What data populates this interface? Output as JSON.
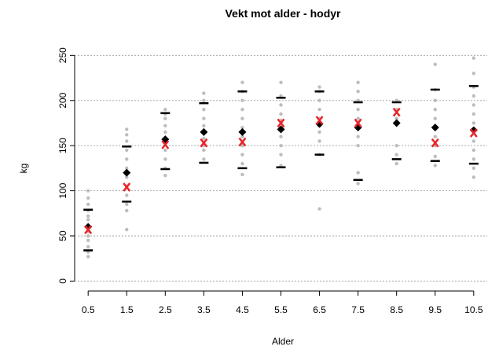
{
  "chart_data": {
    "type": "scatter",
    "title": "Vekt mot alder - hodyr",
    "xlabel": "Alder",
    "ylabel": "kg",
    "xlim": [
      0.15,
      10.85
    ],
    "ylim": [
      -11,
      259
    ],
    "xticks": [
      0.5,
      1.5,
      2.5,
      3.5,
      4.5,
      5.5,
      6.5,
      7.5,
      8.5,
      9.5,
      10.5
    ],
    "yticks": [
      0,
      50,
      100,
      150,
      200,
      250
    ],
    "grid": true,
    "series": [
      {
        "marker": "dot",
        "color": "#bdbdbd",
        "x": [
          0.5,
          0.5,
          0.5,
          0.5,
          0.5,
          0.5,
          0.5,
          0.5,
          0.5,
          0.5,
          0.5,
          0.5,
          0.5,
          1.5,
          1.5,
          1.5,
          1.5,
          1.5,
          1.5,
          1.5,
          1.5,
          1.5,
          1.5,
          1.5,
          1.5,
          2.5,
          2.5,
          2.5,
          2.5,
          2.5,
          2.5,
          2.5,
          2.5,
          2.5,
          2.5,
          3.5,
          3.5,
          3.5,
          3.5,
          3.5,
          3.5,
          3.5,
          3.5,
          3.5,
          3.5,
          4.5,
          4.5,
          4.5,
          4.5,
          4.5,
          4.5,
          4.5,
          4.5,
          4.5,
          4.5,
          4.5,
          5.5,
          5.5,
          5.5,
          5.5,
          5.5,
          5.5,
          5.5,
          5.5,
          5.5,
          5.5,
          6.5,
          6.5,
          6.5,
          6.5,
          6.5,
          6.5,
          6.5,
          6.5,
          6.5,
          6.5,
          7.5,
          7.5,
          7.5,
          7.5,
          7.5,
          7.5,
          7.5,
          7.5,
          7.5,
          7.5,
          8.5,
          8.5,
          8.5,
          8.5,
          8.5,
          8.5,
          9.5,
          9.5,
          9.5,
          9.5,
          9.5,
          9.5,
          9.5,
          9.5,
          9.5,
          9.5,
          10.5,
          10.5,
          10.5,
          10.5,
          10.5,
          10.5,
          10.5,
          10.5,
          10.5,
          10.5,
          10.5,
          10.5,
          10.5
        ],
        "values": [
          27,
          32,
          38,
          45,
          50,
          55,
          62,
          68,
          72,
          78,
          85,
          92,
          100,
          57,
          78,
          85,
          95,
          105,
          115,
          125,
          135,
          145,
          155,
          162,
          168,
          117,
          125,
          135,
          145,
          155,
          165,
          172,
          180,
          185,
          190,
          135,
          145,
          150,
          158,
          165,
          172,
          180,
          190,
          200,
          208,
          118,
          130,
          140,
          150,
          160,
          170,
          180,
          190,
          200,
          210,
          220,
          128,
          140,
          150,
          160,
          170,
          178,
          185,
          195,
          205,
          220,
          80,
          140,
          155,
          165,
          172,
          180,
          190,
          200,
          210,
          215,
          108,
          120,
          150,
          160,
          170,
          180,
          190,
          200,
          210,
          220,
          130,
          140,
          150,
          180,
          190,
          200,
          128,
          138,
          150,
          160,
          170,
          180,
          190,
          200,
          212,
          240,
          115,
          125,
          135,
          145,
          155,
          165,
          175,
          185,
          195,
          205,
          215,
          230,
          247
        ]
      },
      {
        "marker": "dash",
        "color": "#000000",
        "x": [
          0.5,
          1.5,
          2.5,
          3.5,
          4.5,
          5.5,
          6.5,
          7.5,
          8.5,
          9.5,
          10.5
        ],
        "values": [
          79,
          149,
          186,
          197,
          210,
          203,
          210,
          198,
          198,
          212,
          216
        ]
      },
      {
        "marker": "dash",
        "color": "#000000",
        "x": [
          0.5,
          1.5,
          2.5,
          3.5,
          4.5,
          5.5,
          6.5,
          7.5,
          8.5,
          9.5,
          10.5
        ],
        "values": [
          34,
          88,
          124,
          131,
          125,
          126,
          140,
          112,
          135,
          133,
          130
        ]
      },
      {
        "marker": "diamond",
        "color": "#000000",
        "x": [
          0.5,
          1.5,
          2.5,
          3.5,
          4.5,
          5.5,
          6.5,
          7.5,
          8.5,
          9.5,
          10.5
        ],
        "values": [
          60,
          120,
          157,
          165,
          165,
          168,
          174,
          170,
          175,
          170,
          167
        ]
      },
      {
        "marker": "cross",
        "color": "#e8262a",
        "x": [
          0.5,
          1.5,
          2.5,
          3.5,
          4.5,
          5.5,
          6.5,
          7.5,
          8.5,
          9.5,
          10.5
        ],
        "values": [
          57,
          104,
          151,
          153,
          154,
          175,
          178,
          175,
          187,
          153,
          164
        ]
      }
    ]
  }
}
